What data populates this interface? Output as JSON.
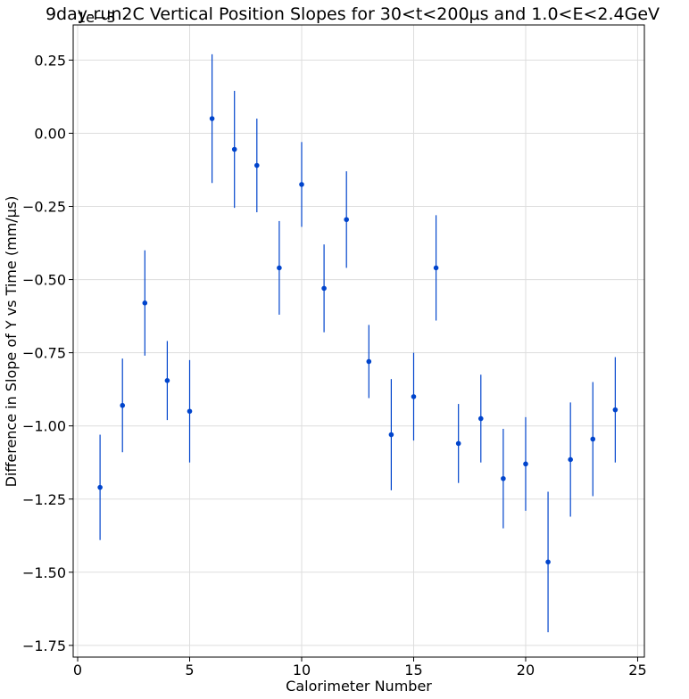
{
  "chart_data": {
    "type": "scatter",
    "title": "9day-run2C Vertical Position Slopes for 30<t<200µs and 1.0<E<2.4GeV",
    "xlabel": "Calorimeter Number",
    "ylabel": "Difference in Slope of Y vs Time (mm/µs)",
    "y_offset_label": "1e−3",
    "xlim": [
      -0.2,
      25.3
    ],
    "ylim": [
      -1.79,
      0.37
    ],
    "y_scale_factor": 0.001,
    "grid": true,
    "point_color": "#0044cc",
    "errorbar_color": "#0044cc",
    "x_ticks": [
      0,
      5,
      10,
      15,
      20,
      25
    ],
    "y_ticks": [
      0.25,
      0.0,
      -0.25,
      -0.5,
      -0.75,
      -1.0,
      -1.25,
      -1.5,
      -1.75
    ],
    "x_tick_labels": [
      "0",
      "5",
      "10",
      "15",
      "20",
      "25"
    ],
    "y_tick_labels": [
      "0.25",
      "0.00",
      "−0.25",
      "−0.50",
      "−0.75",
      "−1.00",
      "−1.25",
      "−1.50",
      "−1.75"
    ],
    "points": [
      {
        "x": 1,
        "y": -1.21,
        "err": 0.18
      },
      {
        "x": 2,
        "y": -0.93,
        "err": 0.16
      },
      {
        "x": 3,
        "y": -0.58,
        "err": 0.18
      },
      {
        "x": 4,
        "y": -0.845,
        "err": 0.135
      },
      {
        "x": 5,
        "y": -0.95,
        "err": 0.175
      },
      {
        "x": 6,
        "y": 0.05,
        "err": 0.22
      },
      {
        "x": 7,
        "y": -0.055,
        "err": 0.2
      },
      {
        "x": 8,
        "y": -0.11,
        "err": 0.16
      },
      {
        "x": 9,
        "y": -0.46,
        "err": 0.16
      },
      {
        "x": 10,
        "y": -0.175,
        "err": 0.145
      },
      {
        "x": 11,
        "y": -0.53,
        "err": 0.15
      },
      {
        "x": 12,
        "y": -0.295,
        "err": 0.165
      },
      {
        "x": 13,
        "y": -0.78,
        "err": 0.125
      },
      {
        "x": 14,
        "y": -1.03,
        "err": 0.19
      },
      {
        "x": 15,
        "y": -0.9,
        "err": 0.15
      },
      {
        "x": 16,
        "y": -0.46,
        "err": 0.18
      },
      {
        "x": 17,
        "y": -1.06,
        "err": 0.135
      },
      {
        "x": 18,
        "y": -0.975,
        "err": 0.15
      },
      {
        "x": 19,
        "y": -1.18,
        "err": 0.17
      },
      {
        "x": 20,
        "y": -1.13,
        "err": 0.16
      },
      {
        "x": 21,
        "y": -1.465,
        "err": 0.24
      },
      {
        "x": 22,
        "y": -1.115,
        "err": 0.195
      },
      {
        "x": 23,
        "y": -1.045,
        "err": 0.195
      },
      {
        "x": 24,
        "y": -0.945,
        "err": 0.18
      }
    ]
  }
}
